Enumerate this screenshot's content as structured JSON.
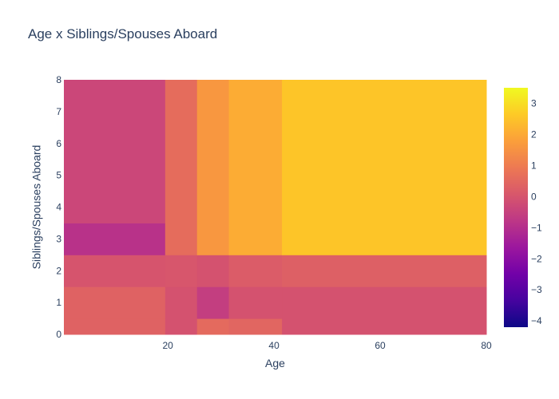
{
  "chart_data": {
    "type": "heatmap",
    "title": "Age x Siblings/Spouses Aboard",
    "xlabel": "Age",
    "ylabel": "Siblings/Spouses Aboard",
    "xlim": [
      0.42,
      80
    ],
    "ylim": [
      0,
      8
    ],
    "x_ticks": [
      20,
      40,
      60,
      80
    ],
    "y_ticks": [
      0,
      1,
      2,
      3,
      4,
      5,
      6,
      7,
      8
    ],
    "x_edges": [
      0.42,
      19.5,
      25.5,
      31.5,
      41.5,
      80
    ],
    "y_edges": [
      0,
      0.5,
      1.5,
      2.5,
      3.5,
      8
    ],
    "z": [
      [
        0.35,
        -0.05,
        0.55,
        0.45,
        -0.05
      ],
      [
        0.35,
        -0.05,
        -0.6,
        -0.05,
        -0.05
      ],
      [
        0.0,
        0.05,
        -0.05,
        0.2,
        0.3
      ],
      [
        -0.9,
        0.6,
        1.6,
        2.05,
        2.55
      ],
      [
        -0.35,
        0.6,
        1.6,
        2.05,
        2.55
      ]
    ],
    "colorscale": [
      "#0d0887",
      "#46039f",
      "#7201a8",
      "#9c179e",
      "#bd3786",
      "#d8576b",
      "#ed7953",
      "#fb9f3a",
      "#fdca26",
      "#f0f921"
    ],
    "colorbar": {
      "min": -4.2,
      "max": 3.5,
      "ticks": [
        3,
        2,
        1,
        0,
        -1,
        -2,
        -3,
        -4
      ]
    }
  }
}
